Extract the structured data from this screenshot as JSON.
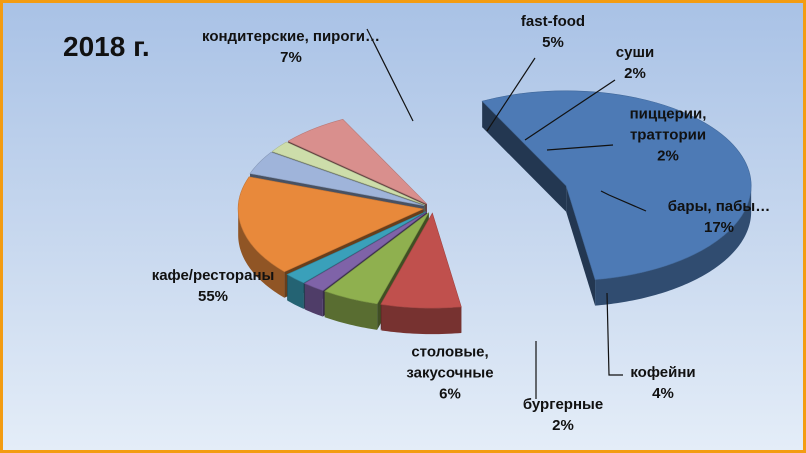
{
  "chart_data": {
    "type": "pie",
    "title": "2018 г.",
    "slices": [
      {
        "name": "кафе/рестораны",
        "value": 55,
        "label": "55%",
        "color": "#4d7ab5"
      },
      {
        "name": "кондитерские, пироги…",
        "value": 7,
        "label": "7%",
        "color": "#c0504d"
      },
      {
        "name": "fast-food",
        "value": 5,
        "label": "5%",
        "color": "#8fb04f"
      },
      {
        "name": "суши",
        "value": 2,
        "label": "2%",
        "color": "#7f63a8"
      },
      {
        "name": "пиццерии, траттории",
        "value": 2,
        "label": "2%",
        "color": "#3aa0ba"
      },
      {
        "name": "бары, пабы…",
        "value": 17,
        "label": "17%",
        "color": "#e8893b"
      },
      {
        "name": "кофейни",
        "value": 4,
        "label": "4%",
        "color": "#9fb4da"
      },
      {
        "name": "бургерные",
        "value": 2,
        "label": "2%",
        "color": "#cdddaa"
      },
      {
        "name": "столовые, закусочные",
        "value": 6,
        "label": "6%",
        "color": "#d98f8d"
      }
    ],
    "legend": "none",
    "style": "exploded-3d"
  }
}
